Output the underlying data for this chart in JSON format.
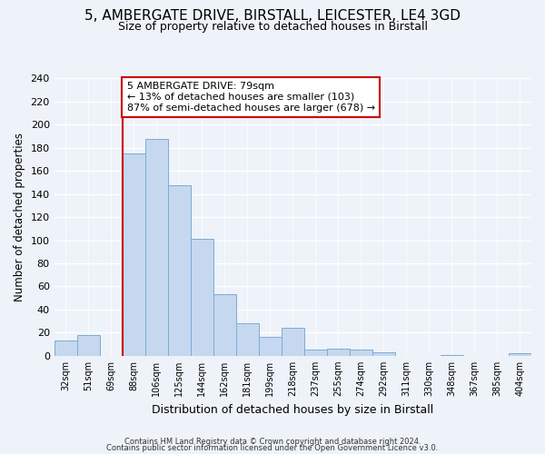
{
  "title": "5, AMBERGATE DRIVE, BIRSTALL, LEICESTER, LE4 3GD",
  "subtitle": "Size of property relative to detached houses in Birstall",
  "xlabel": "Distribution of detached houses by size in Birstall",
  "ylabel": "Number of detached properties",
  "bin_labels": [
    "32sqm",
    "51sqm",
    "69sqm",
    "88sqm",
    "106sqm",
    "125sqm",
    "144sqm",
    "162sqm",
    "181sqm",
    "199sqm",
    "218sqm",
    "237sqm",
    "255sqm",
    "274sqm",
    "292sqm",
    "311sqm",
    "330sqm",
    "348sqm",
    "367sqm",
    "385sqm",
    "404sqm"
  ],
  "bar_values": [
    13,
    18,
    0,
    175,
    188,
    148,
    101,
    53,
    28,
    16,
    24,
    5,
    6,
    5,
    3,
    0,
    0,
    1,
    0,
    0,
    2
  ],
  "bar_color": "#c5d8ef",
  "bar_edge_color": "#7aacd6",
  "vline_x_index": 3,
  "vline_color": "#cc0000",
  "annotation_lines": [
    "5 AMBERGATE DRIVE: 79sqm",
    "← 13% of detached houses are smaller (103)",
    "87% of semi-detached houses are larger (678) →"
  ],
  "annotation_box_edge_color": "#cc0000",
  "ylim": [
    0,
    240
  ],
  "yticks": [
    0,
    20,
    40,
    60,
    80,
    100,
    120,
    140,
    160,
    180,
    200,
    220,
    240
  ],
  "footer_line1": "Contains HM Land Registry data © Crown copyright and database right 2024.",
  "footer_line2": "Contains public sector information licensed under the Open Government Licence v3.0.",
  "bg_color": "#eef2f9",
  "grid_color": "#ffffff",
  "title_fontsize": 11,
  "subtitle_fontsize": 9
}
